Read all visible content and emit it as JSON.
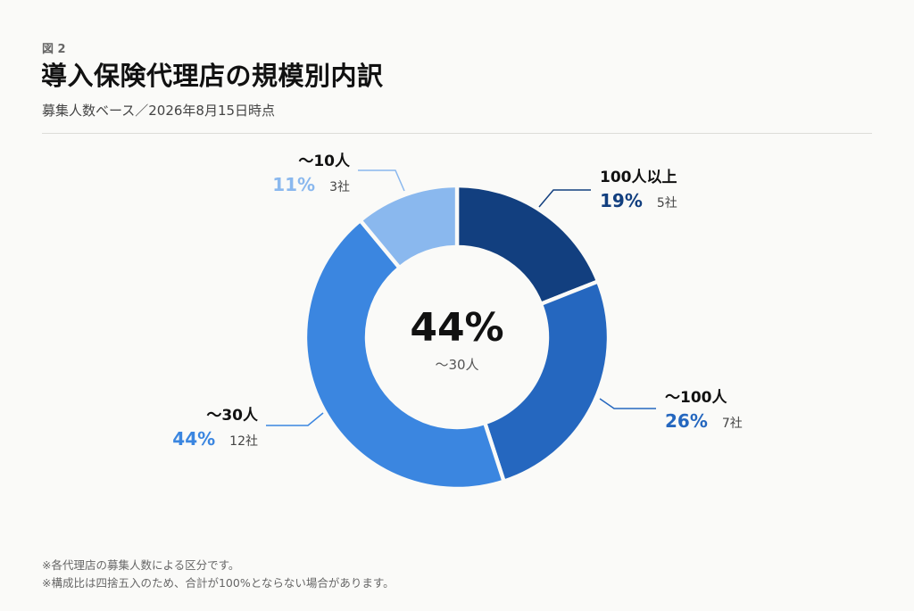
{
  "header": {
    "figure_label": "図 2",
    "title": "導入保険代理店の規模別内訳",
    "subtitle": "募集人数ベース／2026年8月15日時点"
  },
  "chart_data": {
    "type": "pie",
    "variant": "donut",
    "title": "導入保険代理店の規模別内訳",
    "subtitle": "募集人数ベース／2026年8月15日時点",
    "center_label": {
      "value": "44%",
      "caption": "〜30人"
    },
    "slices": [
      {
        "label": "100人以上",
        "percent": 19,
        "percent_label": "19%",
        "count_label": "5社",
        "color": "#123f7f"
      },
      {
        "label": "〜100人",
        "percent": 26,
        "percent_label": "26%",
        "count_label": "7社",
        "color": "#2567bf"
      },
      {
        "label": "〜30人",
        "percent": 44,
        "percent_label": "44%",
        "count_label": "12社",
        "color": "#3b86e0"
      },
      {
        "label": "〜10人",
        "percent": 11,
        "percent_label": "11%",
        "count_label": "3社",
        "color": "#8ab8ee"
      }
    ]
  },
  "notes": [
    "※各代理店の募集人数による区分です。",
    "※構成比は四捨五入のため、合計が100%とならない場合があります。"
  ]
}
